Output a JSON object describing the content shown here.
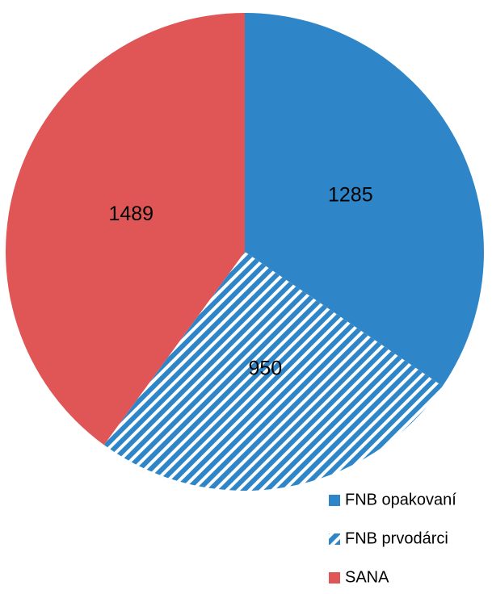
{
  "chart_data": {
    "type": "pie",
    "categories": [
      "FNB opakovaní",
      "FNB prvodárci",
      "SANA"
    ],
    "values": [
      1285,
      950,
      1489
    ],
    "colors": [
      "#2e86c8",
      "#2e86c8",
      "#e05555"
    ],
    "hatched": [
      false,
      true,
      false
    ],
    "legend": "bottom-right"
  }
}
